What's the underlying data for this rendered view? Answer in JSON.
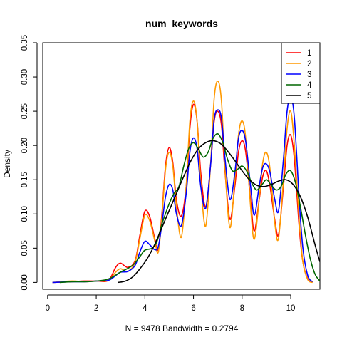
{
  "chart_data": {
    "type": "line",
    "title": "num_keywords",
    "xlabel": "N = 9478   Bandwidth = 0.2794",
    "ylabel": "Density",
    "xlim": [
      -0.2,
      11.2
    ],
    "ylim": [
      -0.01,
      0.35
    ],
    "xticks": [
      "0",
      "2",
      "4",
      "6",
      "8",
      "10"
    ],
    "yticks": [
      "0.00",
      "0.05",
      "0.10",
      "0.15",
      "0.20",
      "0.25",
      "0.30",
      "0.35"
    ],
    "legend_position": "top-right",
    "grid": false,
    "series": [
      {
        "name": "1",
        "color": "#ff0000",
        "points": [
          [
            0.2,
            0
          ],
          [
            1.0,
            0.001
          ],
          [
            1.5,
            0.002
          ],
          [
            2.0,
            0.002
          ],
          [
            2.5,
            0.003
          ],
          [
            2.8,
            0.022
          ],
          [
            3.0,
            0.028
          ],
          [
            3.3,
            0.022
          ],
          [
            3.6,
            0.032
          ],
          [
            3.8,
            0.07
          ],
          [
            4.0,
            0.104
          ],
          [
            4.2,
            0.096
          ],
          [
            4.4,
            0.065
          ],
          [
            4.55,
            0.048
          ],
          [
            4.7,
            0.1
          ],
          [
            4.85,
            0.17
          ],
          [
            5.0,
            0.197
          ],
          [
            5.15,
            0.175
          ],
          [
            5.3,
            0.12
          ],
          [
            5.5,
            0.097
          ],
          [
            5.7,
            0.14
          ],
          [
            5.85,
            0.225
          ],
          [
            6.0,
            0.26
          ],
          [
            6.15,
            0.235
          ],
          [
            6.3,
            0.16
          ],
          [
            6.5,
            0.11
          ],
          [
            6.7,
            0.17
          ],
          [
            6.85,
            0.235
          ],
          [
            7.0,
            0.25
          ],
          [
            7.15,
            0.23
          ],
          [
            7.3,
            0.16
          ],
          [
            7.5,
            0.092
          ],
          [
            7.7,
            0.14
          ],
          [
            7.85,
            0.19
          ],
          [
            8.0,
            0.207
          ],
          [
            8.15,
            0.19
          ],
          [
            8.35,
            0.12
          ],
          [
            8.5,
            0.075
          ],
          [
            8.7,
            0.12
          ],
          [
            8.85,
            0.155
          ],
          [
            9.0,
            0.163
          ],
          [
            9.15,
            0.14
          ],
          [
            9.35,
            0.09
          ],
          [
            9.5,
            0.07
          ],
          [
            9.7,
            0.14
          ],
          [
            9.85,
            0.2
          ],
          [
            10.0,
            0.215
          ],
          [
            10.15,
            0.18
          ],
          [
            10.35,
            0.08
          ],
          [
            10.5,
            0.03
          ],
          [
            10.7,
            0.005
          ],
          [
            10.9,
            0
          ]
        ]
      },
      {
        "name": "2",
        "color": "#ff9900",
        "points": [
          [
            0.2,
            0
          ],
          [
            1.0,
            0.002
          ],
          [
            1.5,
            0.001
          ],
          [
            2.0,
            0.002
          ],
          [
            2.5,
            0.003
          ],
          [
            2.8,
            0.015
          ],
          [
            3.0,
            0.02
          ],
          [
            3.3,
            0.016
          ],
          [
            3.6,
            0.03
          ],
          [
            3.8,
            0.065
          ],
          [
            4.0,
            0.098
          ],
          [
            4.2,
            0.09
          ],
          [
            4.4,
            0.062
          ],
          [
            4.55,
            0.044
          ],
          [
            4.7,
            0.095
          ],
          [
            4.85,
            0.165
          ],
          [
            5.0,
            0.19
          ],
          [
            5.15,
            0.17
          ],
          [
            5.3,
            0.11
          ],
          [
            5.5,
            0.066
          ],
          [
            5.7,
            0.14
          ],
          [
            5.85,
            0.235
          ],
          [
            6.0,
            0.265
          ],
          [
            6.15,
            0.235
          ],
          [
            6.3,
            0.145
          ],
          [
            6.5,
            0.082
          ],
          [
            6.7,
            0.17
          ],
          [
            6.85,
            0.268
          ],
          [
            7.0,
            0.294
          ],
          [
            7.15,
            0.265
          ],
          [
            7.3,
            0.165
          ],
          [
            7.5,
            0.08
          ],
          [
            7.7,
            0.15
          ],
          [
            7.85,
            0.215
          ],
          [
            8.0,
            0.236
          ],
          [
            8.15,
            0.21
          ],
          [
            8.35,
            0.11
          ],
          [
            8.5,
            0.063
          ],
          [
            8.7,
            0.12
          ],
          [
            8.85,
            0.175
          ],
          [
            9.0,
            0.19
          ],
          [
            9.15,
            0.165
          ],
          [
            9.35,
            0.085
          ],
          [
            9.5,
            0.065
          ],
          [
            9.7,
            0.15
          ],
          [
            9.85,
            0.225
          ],
          [
            10.0,
            0.25
          ],
          [
            10.15,
            0.2
          ],
          [
            10.35,
            0.09
          ],
          [
            10.5,
            0.03
          ],
          [
            10.7,
            0.004
          ],
          [
            10.9,
            0
          ]
        ]
      },
      {
        "name": "3",
        "color": "#0000ff",
        "points": [
          [
            0.2,
            0
          ],
          [
            1.0,
            0.001
          ],
          [
            1.5,
            0.001
          ],
          [
            2.0,
            0.002
          ],
          [
            2.5,
            0.003
          ],
          [
            2.8,
            0.01
          ],
          [
            3.0,
            0.015
          ],
          [
            3.3,
            0.016
          ],
          [
            3.6,
            0.025
          ],
          [
            3.8,
            0.045
          ],
          [
            4.0,
            0.06
          ],
          [
            4.2,
            0.055
          ],
          [
            4.4,
            0.048
          ],
          [
            4.55,
            0.052
          ],
          [
            4.7,
            0.085
          ],
          [
            4.85,
            0.125
          ],
          [
            5.0,
            0.143
          ],
          [
            5.15,
            0.135
          ],
          [
            5.3,
            0.1
          ],
          [
            5.5,
            0.083
          ],
          [
            5.7,
            0.13
          ],
          [
            5.85,
            0.19
          ],
          [
            6.0,
            0.211
          ],
          [
            6.15,
            0.195
          ],
          [
            6.3,
            0.14
          ],
          [
            6.5,
            0.108
          ],
          [
            6.7,
            0.17
          ],
          [
            6.85,
            0.238
          ],
          [
            7.0,
            0.252
          ],
          [
            7.15,
            0.24
          ],
          [
            7.3,
            0.18
          ],
          [
            7.5,
            0.121
          ],
          [
            7.7,
            0.16
          ],
          [
            7.85,
            0.21
          ],
          [
            8.0,
            0.222
          ],
          [
            8.15,
            0.205
          ],
          [
            8.35,
            0.14
          ],
          [
            8.5,
            0.098
          ],
          [
            8.7,
            0.14
          ],
          [
            8.85,
            0.168
          ],
          [
            9.0,
            0.173
          ],
          [
            9.15,
            0.16
          ],
          [
            9.35,
            0.12
          ],
          [
            9.5,
            0.105
          ],
          [
            9.7,
            0.18
          ],
          [
            9.85,
            0.25
          ],
          [
            10.0,
            0.27
          ],
          [
            10.15,
            0.24
          ],
          [
            10.35,
            0.12
          ],
          [
            10.5,
            0.05
          ],
          [
            10.7,
            0.01
          ],
          [
            10.9,
            0.001
          ]
        ]
      },
      {
        "name": "4",
        "color": "#006600",
        "points": [
          [
            0.5,
            0
          ],
          [
            1.0,
            0.001
          ],
          [
            1.5,
            0.001
          ],
          [
            2.0,
            0.002
          ],
          [
            2.5,
            0.005
          ],
          [
            3.0,
            0.015
          ],
          [
            3.5,
            0.025
          ],
          [
            3.8,
            0.038
          ],
          [
            4.0,
            0.047
          ],
          [
            4.3,
            0.05
          ],
          [
            4.5,
            0.06
          ],
          [
            4.7,
            0.085
          ],
          [
            5.0,
            0.115
          ],
          [
            5.2,
            0.13
          ],
          [
            5.4,
            0.14
          ],
          [
            5.6,
            0.17
          ],
          [
            5.8,
            0.195
          ],
          [
            6.0,
            0.204
          ],
          [
            6.2,
            0.195
          ],
          [
            6.4,
            0.183
          ],
          [
            6.6,
            0.19
          ],
          [
            6.8,
            0.21
          ],
          [
            7.0,
            0.217
          ],
          [
            7.2,
            0.205
          ],
          [
            7.4,
            0.18
          ],
          [
            7.6,
            0.163
          ],
          [
            7.8,
            0.165
          ],
          [
            8.0,
            0.17
          ],
          [
            8.2,
            0.162
          ],
          [
            8.4,
            0.145
          ],
          [
            8.6,
            0.135
          ],
          [
            8.8,
            0.142
          ],
          [
            9.0,
            0.15
          ],
          [
            9.2,
            0.142
          ],
          [
            9.4,
            0.135
          ],
          [
            9.6,
            0.14
          ],
          [
            9.8,
            0.158
          ],
          [
            10.0,
            0.163
          ],
          [
            10.2,
            0.145
          ],
          [
            10.4,
            0.11
          ],
          [
            10.6,
            0.07
          ],
          [
            10.8,
            0.035
          ],
          [
            11.0,
            0.012
          ],
          [
            11.2,
            0.002
          ]
        ]
      },
      {
        "name": "5",
        "color": "#000000",
        "points": [
          [
            2.9,
            0
          ],
          [
            3.2,
            0.002
          ],
          [
            3.5,
            0.008
          ],
          [
            3.8,
            0.02
          ],
          [
            4.1,
            0.035
          ],
          [
            4.4,
            0.055
          ],
          [
            4.7,
            0.08
          ],
          [
            5.0,
            0.105
          ],
          [
            5.3,
            0.13
          ],
          [
            5.6,
            0.155
          ],
          [
            5.9,
            0.178
          ],
          [
            6.2,
            0.195
          ],
          [
            6.5,
            0.204
          ],
          [
            6.8,
            0.207
          ],
          [
            7.1,
            0.203
          ],
          [
            7.4,
            0.192
          ],
          [
            7.7,
            0.178
          ],
          [
            8.0,
            0.163
          ],
          [
            8.3,
            0.15
          ],
          [
            8.6,
            0.142
          ],
          [
            8.9,
            0.14
          ],
          [
            9.2,
            0.143
          ],
          [
            9.5,
            0.148
          ],
          [
            9.8,
            0.15
          ],
          [
            10.1,
            0.143
          ],
          [
            10.4,
            0.125
          ],
          [
            10.7,
            0.095
          ],
          [
            11.0,
            0.055
          ],
          [
            11.2,
            0.03
          ]
        ]
      }
    ]
  }
}
